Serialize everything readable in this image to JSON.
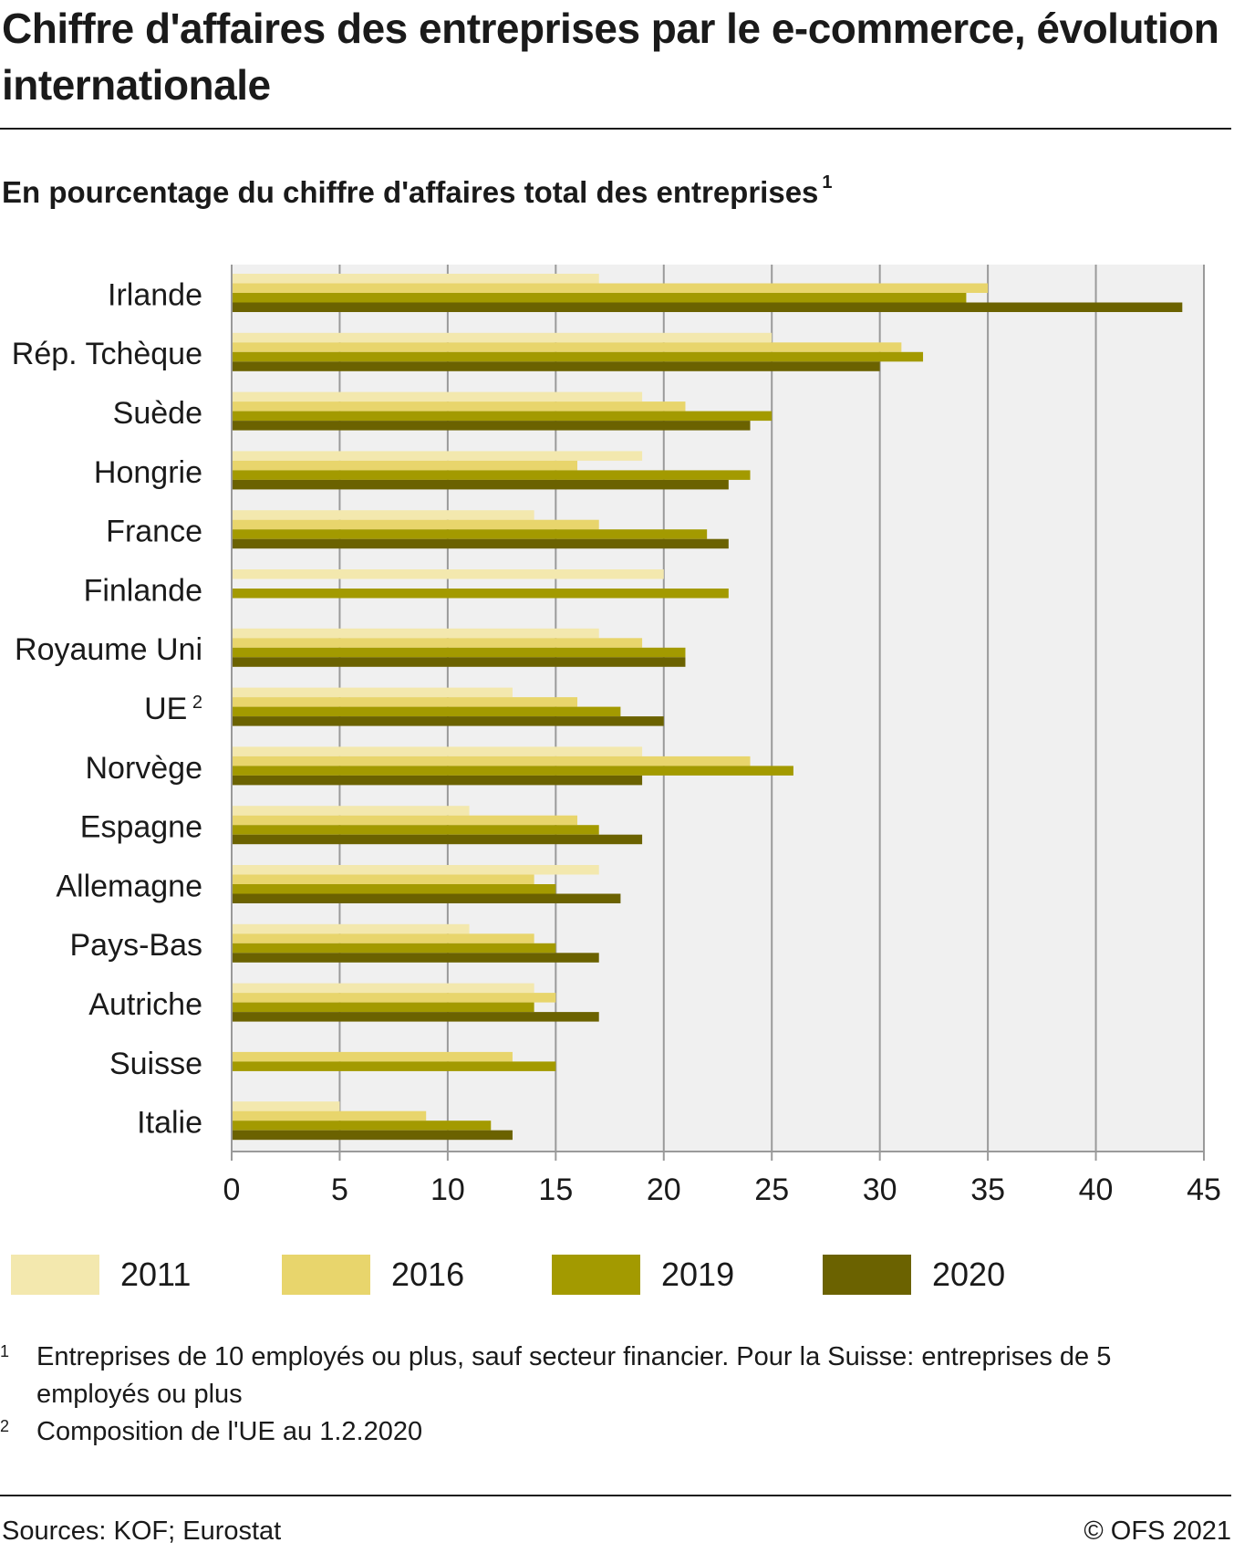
{
  "title": "Chiffre d'affaires des entreprises par le e-commerce, évolution internationale",
  "subtitle": "En pourcentage du chiffre d'affaires total des entreprises",
  "subtitle_note": "1",
  "colors": {
    "2011": "#f3e8ae",
    "2016": "#e8d56c",
    "2019": "#a39a00",
    "2020": "#6b6200",
    "plot_bg": "#f0f0f0",
    "grid": "#9a9a9a"
  },
  "chart_data": {
    "type": "bar",
    "orientation": "horizontal",
    "categories": [
      "Irlande",
      "Rép. Tchèque",
      "Suède",
      "Hongrie",
      "France",
      "Finlande",
      "Royaume Uni",
      "UE",
      "Norvège",
      "Espagne",
      "Allemagne",
      "Pays-Bas",
      "Autriche",
      "Suisse",
      "Italie"
    ],
    "category_notes": {
      "UE": "2"
    },
    "series": [
      {
        "name": "2011",
        "values": [
          17,
          25,
          19,
          19,
          14,
          20,
          17,
          13,
          19,
          11,
          17,
          11,
          14,
          null,
          5
        ]
      },
      {
        "name": "2016",
        "values": [
          35,
          31,
          21,
          16,
          17,
          null,
          19,
          16,
          24,
          16,
          14,
          14,
          15,
          13,
          9
        ]
      },
      {
        "name": "2019",
        "values": [
          34,
          32,
          25,
          24,
          22,
          23,
          21,
          18,
          26,
          17,
          15,
          15,
          14,
          15,
          12
        ]
      },
      {
        "name": "2020",
        "values": [
          44,
          30,
          24,
          23,
          23,
          null,
          21,
          20,
          19,
          19,
          18,
          17,
          17,
          null,
          13
        ]
      }
    ],
    "xlim": [
      0,
      45
    ],
    "xticks": [
      0,
      5,
      10,
      15,
      20,
      25,
      30,
      35,
      40,
      45
    ],
    "grid": true,
    "legend_position": "bottom"
  },
  "legend": [
    {
      "label": "2011"
    },
    {
      "label": "2016"
    },
    {
      "label": "2019"
    },
    {
      "label": "2020"
    }
  ],
  "footnotes": [
    {
      "num": "1",
      "text": "Entreprises de 10 employés ou plus, sauf secteur financier. Pour la Suisse: entreprises de 5 employés ou plus"
    },
    {
      "num": "2",
      "text": "Composition de l'UE au 1.2.2020"
    }
  ],
  "sources": "Sources: KOF; Eurostat",
  "copyright": "© OFS 2021"
}
